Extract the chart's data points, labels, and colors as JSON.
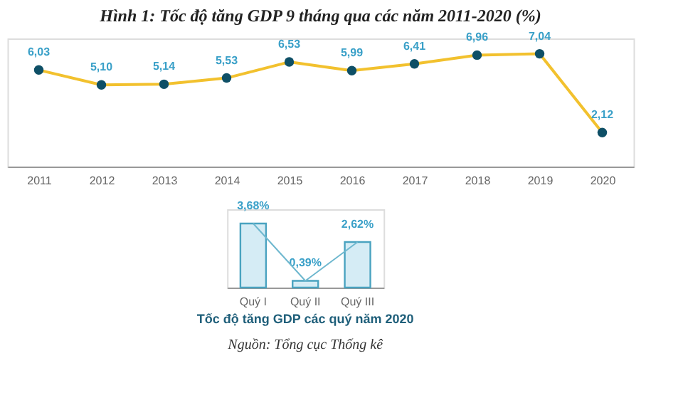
{
  "chart_data": [
    {
      "type": "line",
      "title": "Hình 1: Tốc độ tăng GDP 9 tháng qua các năm 2011-2020 (%)",
      "categories": [
        "2011",
        "2012",
        "2013",
        "2014",
        "2015",
        "2016",
        "2017",
        "2018",
        "2019",
        "2020"
      ],
      "series": [
        {
          "color": "#f2c12e",
          "values": [
            6.03,
            5.1,
            5.14,
            5.53,
            6.53,
            5.99,
            6.41,
            6.96,
            7.04,
            2.12
          ],
          "value_labels": [
            "6,03",
            "5,10",
            "5,14",
            "5,53",
            "6,53",
            "5,99",
            "6,41",
            "6,96",
            "7,04",
            "2,12"
          ]
        }
      ],
      "marker": "circle",
      "ylim": [
        0,
        8
      ]
    },
    {
      "type": "bar",
      "title": "Tốc độ tăng GDP các quý năm 2020",
      "categories": [
        "Quý I",
        "Quý II",
        "Quý III"
      ],
      "series": [
        {
          "type": "bar",
          "color": "#d5ecf5",
          "values": [
            3.68,
            0.39,
            2.62
          ],
          "value_labels": [
            "3,68%",
            "0,39%",
            "2,62%"
          ]
        },
        {
          "type": "line",
          "color": "#6fb8cf",
          "values": [
            3.68,
            0.39,
            2.62
          ]
        }
      ],
      "ylim": [
        0,
        4.5
      ],
      "annotations": [
        "Nguồn: Tổng cục Thống kê"
      ]
    }
  ]
}
